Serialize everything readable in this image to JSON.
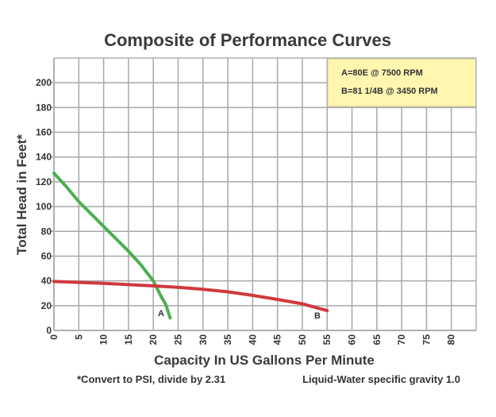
{
  "chart_data": {
    "type": "line",
    "title": "Composite of Performance Curves",
    "xlabel": "Capacity In US Gallons Per Minute",
    "ylabel": "Total Head in Feet*",
    "xlim": [
      0,
      85
    ],
    "ylim": [
      0,
      220
    ],
    "grid": true,
    "x_ticks": [
      0,
      5,
      10,
      15,
      20,
      25,
      30,
      35,
      40,
      45,
      50,
      55,
      60,
      65,
      70,
      75,
      80
    ],
    "y_ticks": [
      0,
      20,
      40,
      60,
      80,
      100,
      120,
      140,
      160,
      180,
      200
    ],
    "legend_position": "top-right",
    "legend": [
      "A=80E @ 7500 RPM",
      "B=81 1/4B @ 3450 RPM"
    ],
    "series": [
      {
        "name": "A",
        "label": "A",
        "color": "#4caf50",
        "x": [
          0,
          2.5,
          5,
          7.5,
          10,
          12.5,
          15,
          17.5,
          20,
          21.5,
          22.5,
          23.4
        ],
        "y": [
          127,
          116,
          104,
          94,
          84,
          74,
          64,
          53,
          40,
          28,
          21,
          10
        ]
      },
      {
        "name": "B",
        "label": "B",
        "color": "#d0393d",
        "x": [
          0,
          10,
          20,
          25,
          30,
          35,
          40,
          45,
          50,
          55
        ],
        "y": [
          39.5,
          38,
          36,
          34.8,
          33.2,
          31.2,
          28.3,
          25,
          21.5,
          16
        ]
      }
    ],
    "footnotes": {
      "left": "*Convert to PSI, divide by 2.31",
      "right": "Liquid-Water specific gravity 1.0"
    }
  },
  "colors": {
    "legend_bg": "#fff6b0",
    "grid": "#a8a8a8",
    "frame": "#b0b0b0"
  }
}
